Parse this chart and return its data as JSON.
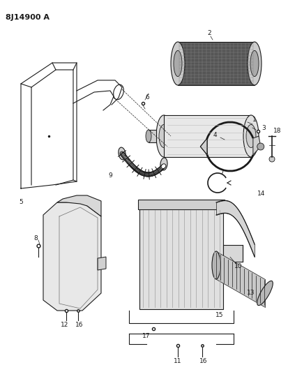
{
  "title": "8J14900 A",
  "background_color": "#ffffff",
  "line_color": "#1a1a1a",
  "figsize": [
    4.13,
    5.33
  ],
  "dpi": 100,
  "label_fs": 6.5
}
